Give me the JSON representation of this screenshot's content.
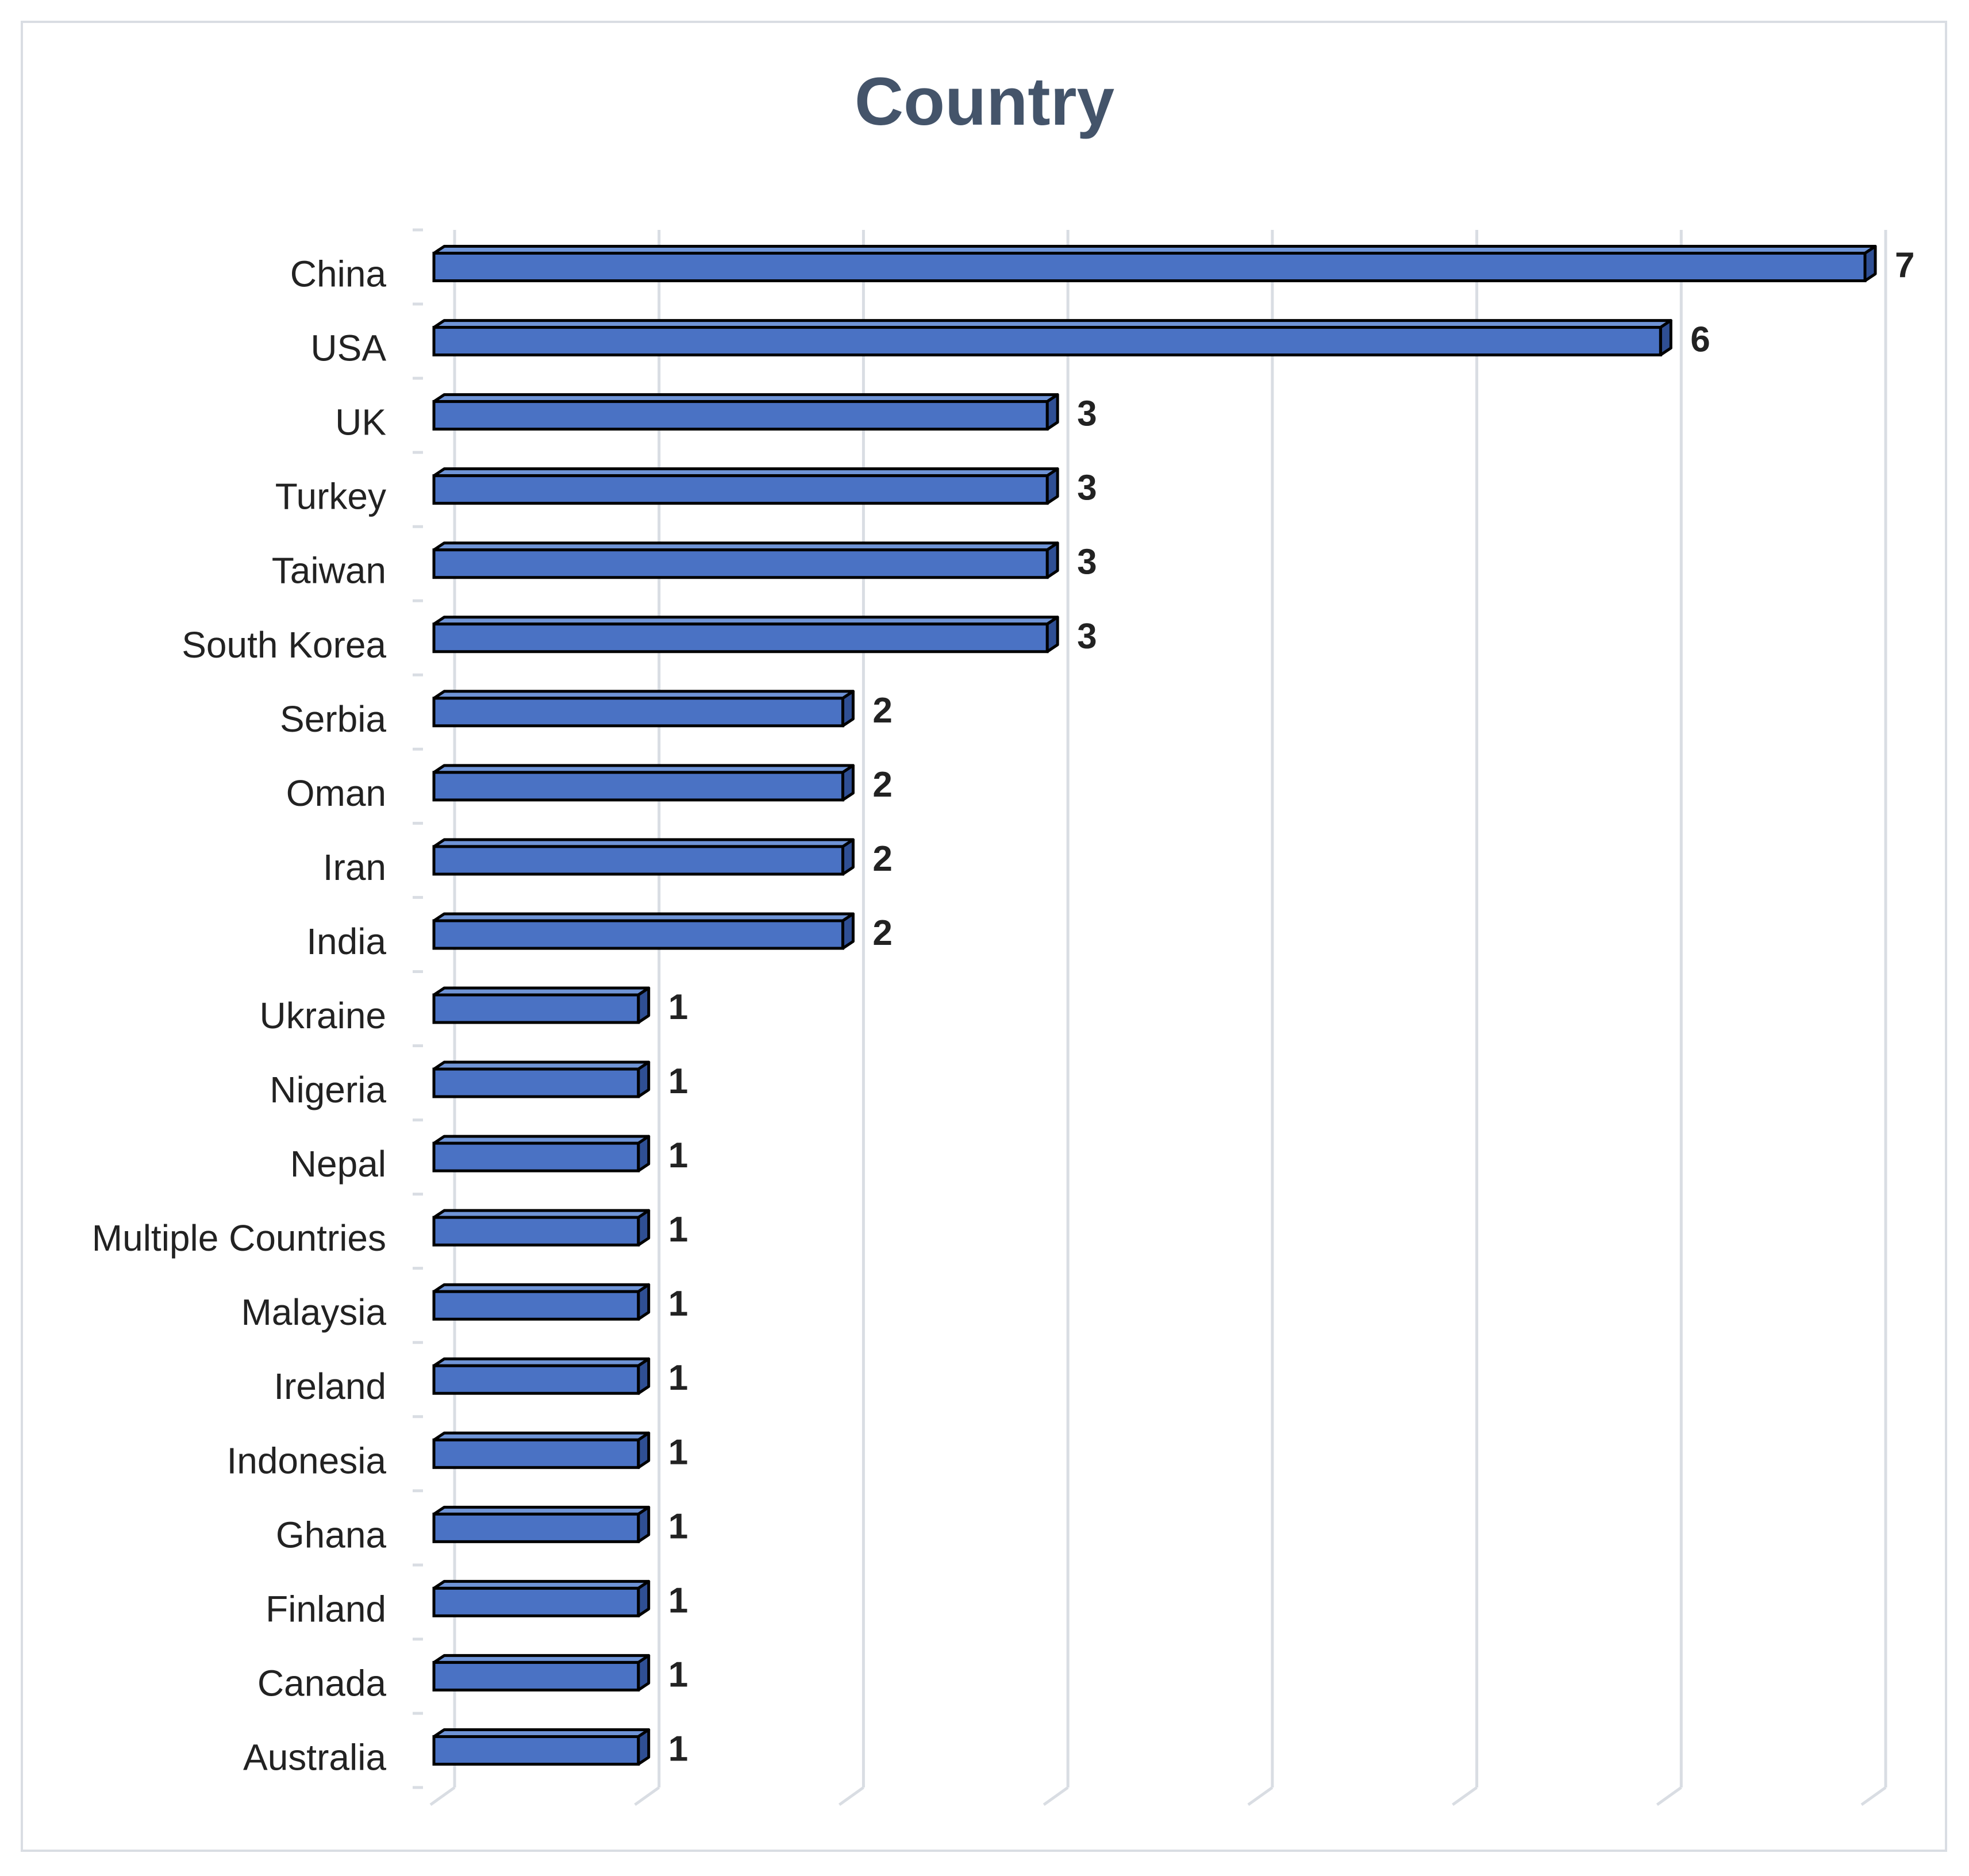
{
  "chart_data": {
    "type": "bar",
    "orientation": "horizontal",
    "title": "Country",
    "xlabel": "",
    "ylabel": "",
    "xlim": [
      0,
      7
    ],
    "grid": true,
    "legend": "none",
    "categories": [
      "China",
      "USA",
      "UK",
      "Turkey",
      "Taiwan",
      "South Korea",
      "Serbia",
      "Oman",
      "Iran",
      "India",
      "Ukraine",
      "Nigeria",
      "Nepal",
      "Multiple Countries",
      "Malaysia",
      "Ireland",
      "Indonesia",
      "Ghana",
      "Finland",
      "Canada",
      "Australia"
    ],
    "values": [
      7,
      6,
      3,
      3,
      3,
      3,
      2,
      2,
      2,
      2,
      1,
      1,
      1,
      1,
      1,
      1,
      1,
      1,
      1,
      1,
      1
    ],
    "data_labels": [
      "7",
      "6",
      "3",
      "3",
      "3",
      "3",
      "2",
      "2",
      "2",
      "2",
      "1",
      "1",
      "1",
      "1",
      "1",
      "1",
      "1",
      "1",
      "1",
      "1",
      "1"
    ],
    "colors": {
      "bar_front": "#4a72c4",
      "bar_top": "#6f94d6",
      "bar_side": "#2f4f94",
      "bar_outline": "#000000",
      "grid": "#d9dde3",
      "title": "#44546a",
      "label": "#222222"
    }
  }
}
